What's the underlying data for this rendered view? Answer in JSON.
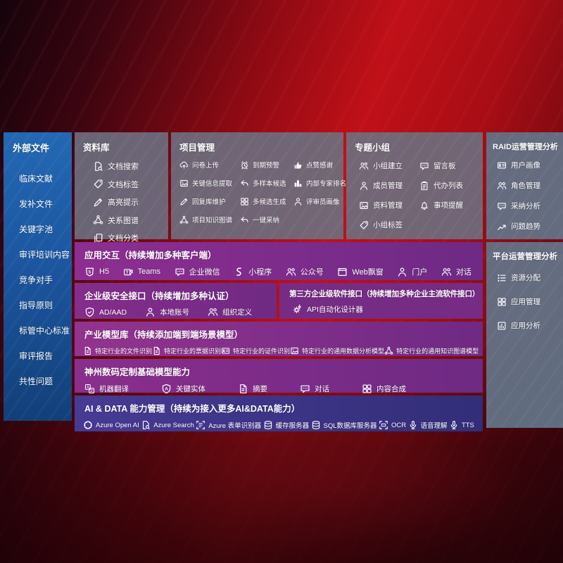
{
  "colors": {
    "background_red": "#b30e16",
    "sidebar_blue": "#1d5fa9",
    "panel_gray": "#6c6e7e",
    "panel_slate": "#637286",
    "row_purple": "#7e2d87",
    "row_indigo": "#41368b",
    "text": "#ffffff"
  },
  "sidebar": {
    "title": "外部文件",
    "items": [
      {
        "label": "临床文献"
      },
      {
        "label": "发补文件"
      },
      {
        "label": "关键字池"
      },
      {
        "label": "审评培训内容"
      },
      {
        "label": "竞争对手"
      },
      {
        "label": "指导原则"
      },
      {
        "label": "标管中心标准"
      },
      {
        "label": "审评报告"
      },
      {
        "label": "共性问题"
      }
    ]
  },
  "panels": {
    "repo": {
      "title": "资料库",
      "items": [
        {
          "icon": "doc-search",
          "label": "文档搜索"
        },
        {
          "icon": "tag",
          "label": "文档标签"
        },
        {
          "icon": "pen",
          "label": "高亮提示"
        },
        {
          "icon": "network",
          "label": "关系图谱"
        },
        {
          "icon": "copy",
          "label": "文档分类"
        }
      ]
    },
    "project": {
      "title": "项目管理",
      "items": [
        {
          "icon": "cloud-upload",
          "label": "问卷上传"
        },
        {
          "icon": "alarm",
          "label": "到期预警"
        },
        {
          "icon": "thumbs-up",
          "label": "点赞感谢"
        },
        {
          "icon": "image",
          "label": "关键信息提取"
        },
        {
          "icon": "reply",
          "label": "多样本候选"
        },
        {
          "icon": "podium",
          "label": "内部专家排名"
        },
        {
          "icon": "pen",
          "label": "回复库维护"
        },
        {
          "icon": "grid",
          "label": "多候选生成"
        },
        {
          "icon": "person",
          "label": "评审员画像"
        },
        {
          "icon": "network",
          "label": "项目知识图谱"
        },
        {
          "icon": "reply",
          "label": "一键采纳"
        }
      ]
    },
    "group": {
      "title": "专题小组",
      "items": [
        {
          "icon": "people",
          "label": "小组建立"
        },
        {
          "icon": "bbs",
          "label": "留言板"
        },
        {
          "icon": "person-add",
          "label": "成员管理"
        },
        {
          "icon": "clipboard",
          "label": "代办列表"
        },
        {
          "icon": "archive",
          "label": "资料管理"
        },
        {
          "icon": "bell",
          "label": "事项提醒"
        },
        {
          "icon": "tag",
          "label": "小组标签"
        }
      ]
    },
    "raid": {
      "title": "RAID运营管理分析",
      "items": [
        {
          "icon": "id-card",
          "label": "用户画像"
        },
        {
          "icon": "people",
          "label": "角色管理"
        },
        {
          "icon": "chat-double",
          "label": "采纳分析"
        },
        {
          "icon": "trend",
          "label": "问题趋势"
        }
      ]
    },
    "platform": {
      "title": "平台运营管理分析",
      "items": [
        {
          "icon": "list",
          "label": "资源分配"
        },
        {
          "icon": "grid",
          "label": "应用管理"
        },
        {
          "icon": "chart-board",
          "label": "应用分析"
        }
      ]
    },
    "interact": {
      "title": "应用交互（持续增加多种客户端）",
      "items": [
        {
          "icon": "h5",
          "label": "H5"
        },
        {
          "icon": "teams",
          "label": "Teams"
        },
        {
          "icon": "wechat-work",
          "label": "企业微信"
        },
        {
          "icon": "mini-program",
          "label": "小程序"
        },
        {
          "icon": "official-account",
          "label": "公众号"
        },
        {
          "icon": "web-window",
          "label": "Web飘窗"
        },
        {
          "icon": "portal",
          "label": "门户"
        },
        {
          "icon": "dialog",
          "label": "对话"
        }
      ]
    },
    "security": {
      "title": "企业级安全接口（持续增加多种认证）",
      "items": [
        {
          "icon": "azure-ad",
          "label": "AD/AAD"
        },
        {
          "icon": "local-account",
          "label": "本地账号"
        },
        {
          "icon": "org",
          "label": "组织定义"
        }
      ]
    },
    "thirdparty": {
      "title": "第三方企业级软件接口（持续增加多种企业主流软件接口）",
      "items": [
        {
          "icon": "api-gear",
          "label": "API自动化设计器"
        }
      ]
    },
    "models": {
      "title": "产业模型库（持续添加端到端场景模型）",
      "items": [
        {
          "icon": "doc",
          "label": "特定行业的文件识别"
        },
        {
          "icon": "receipt",
          "label": "特定行业的票据识别"
        },
        {
          "icon": "id-card",
          "label": "特定行业的证件识别"
        },
        {
          "icon": "image",
          "label": "特定行业的通用数据分析模型"
        },
        {
          "icon": "network",
          "label": "特定行业的通用知识图谱模型"
        }
      ]
    },
    "base": {
      "title": "神州数码定制基础模型能力",
      "items": [
        {
          "icon": "translate",
          "label": "机器翻译"
        },
        {
          "icon": "entity",
          "label": "关键实体"
        },
        {
          "icon": "summary",
          "label": "摘要"
        },
        {
          "icon": "dialog-bubble",
          "label": "对话"
        },
        {
          "icon": "compose",
          "label": "内容合成"
        }
      ]
    },
    "aidata": {
      "title": "AI & DATA 能力管理（持续为接入更多AI&DATA能力）",
      "items": [
        {
          "icon": "openai",
          "label": "Azure Open AI"
        },
        {
          "icon": "azure-search",
          "label": "Azure Search"
        },
        {
          "icon": "form-recognizer",
          "label": "Azure 表单识别器"
        },
        {
          "icon": "cache-server",
          "label": "缓存服务器"
        },
        {
          "icon": "sql-db",
          "label": "SQL数据库服务器"
        },
        {
          "icon": "ocr",
          "label": "OCR"
        },
        {
          "icon": "speech",
          "label": "语音理解"
        },
        {
          "icon": "tts",
          "label": "TTS"
        }
      ]
    }
  }
}
